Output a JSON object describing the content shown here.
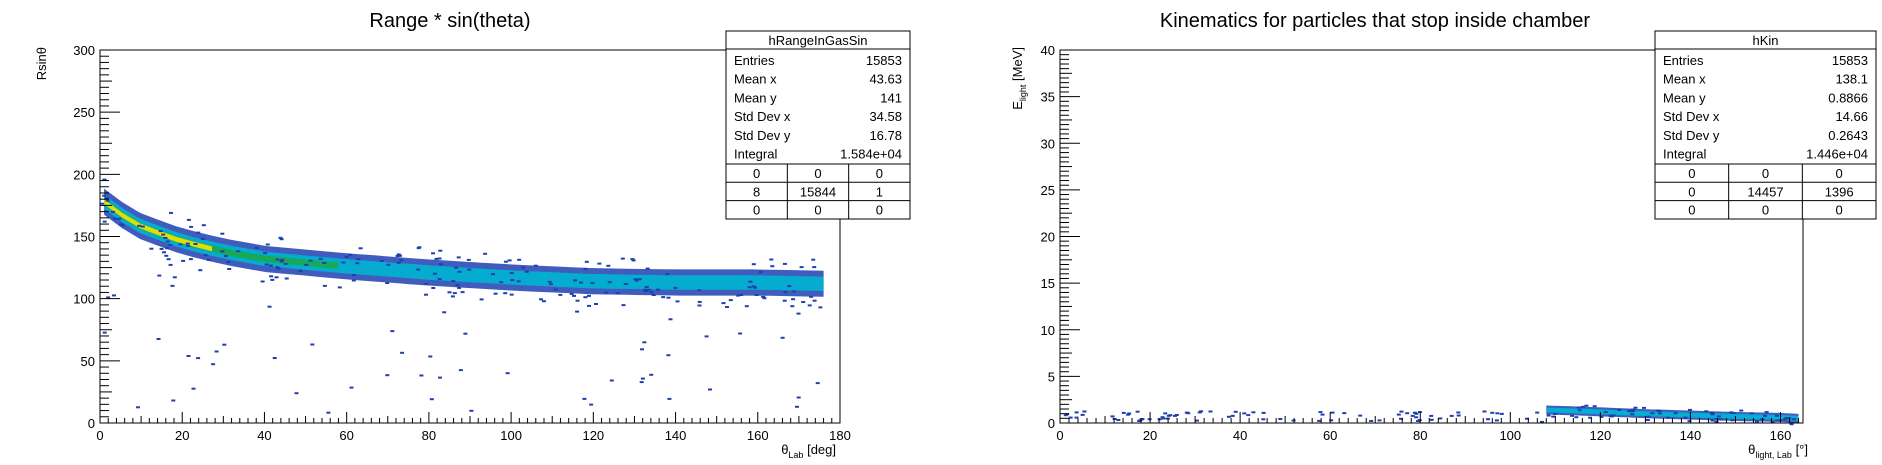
{
  "chart_data": [
    {
      "type": "heatmap",
      "title": "Range * sin(theta)",
      "xlabel_main": "θ",
      "xlabel_sub": "Lab",
      "xlabel_unit": "[deg]",
      "ylabel": "Rsinθ",
      "xlim": [
        0,
        180
      ],
      "ylim": [
        0,
        300
      ],
      "xticks": [
        0,
        20,
        40,
        60,
        80,
        100,
        120,
        140,
        160,
        180
      ],
      "yticks": [
        0,
        50,
        100,
        150,
        200,
        250,
        300
      ],
      "band": {
        "description": "dense curved band",
        "points": [
          [
            1,
            178
          ],
          [
            5,
            168
          ],
          [
            10,
            158
          ],
          [
            20,
            146
          ],
          [
            30,
            138
          ],
          [
            40,
            132
          ],
          [
            60,
            126
          ],
          [
            80,
            121
          ],
          [
            100,
            117
          ],
          [
            120,
            114
          ],
          [
            140,
            113
          ],
          [
            160,
            113
          ],
          [
            176,
            112
          ]
        ]
      },
      "stats": {
        "name": "hRangeInGasSin",
        "rows": [
          {
            "label": "Entries",
            "value": "15853"
          },
          {
            "label": "Mean x",
            "value": "43.63"
          },
          {
            "label": "Mean y",
            "value": "141"
          },
          {
            "label": "Std Dev x",
            "value": "34.58"
          },
          {
            "label": "Std Dev y",
            "value": "16.78"
          },
          {
            "label": "Integral",
            "value": "1.584e+04"
          }
        ],
        "grid": [
          [
            "0",
            "0",
            "0"
          ],
          [
            "8",
            "15844",
            "1"
          ],
          [
            "0",
            "0",
            "0"
          ]
        ]
      }
    },
    {
      "type": "heatmap",
      "title": "Kinematics for particles that stop inside chamber",
      "xlabel_main": "θ",
      "xlabel_sub": "light, Lab",
      "xlabel_unit": "[°]",
      "ylabel_main": "E",
      "ylabel_sub": "light",
      "ylabel_unit": "[MeV]",
      "xlim": [
        0,
        165
      ],
      "ylim": [
        0,
        40
      ],
      "xticks": [
        0,
        20,
        40,
        60,
        80,
        100,
        120,
        140,
        160
      ],
      "yticks": [
        0,
        5,
        10,
        15,
        20,
        25,
        30,
        35,
        40
      ],
      "band": {
        "description": "narrow low-energy band",
        "points": [
          [
            108,
            1.4
          ],
          [
            120,
            1.2
          ],
          [
            130,
            1.0
          ],
          [
            140,
            0.85
          ],
          [
            150,
            0.7
          ],
          [
            160,
            0.6
          ],
          [
            164,
            0.5
          ]
        ]
      },
      "stats": {
        "name": "hKin",
        "rows": [
          {
            "label": "Entries",
            "value": "15853"
          },
          {
            "label": "Mean x",
            "value": "138.1"
          },
          {
            "label": "Mean y",
            "value": "0.8866"
          },
          {
            "label": "Std Dev x",
            "value": "14.66"
          },
          {
            "label": "Std Dev y",
            "value": "0.2643"
          },
          {
            "label": "Integral",
            "value": "1.446e+04"
          }
        ],
        "grid": [
          [
            "0",
            "0",
            "0"
          ],
          [
            "0",
            "14457",
            "1396"
          ],
          [
            "0",
            "0",
            "0"
          ]
        ]
      }
    }
  ],
  "colors": {
    "band_core": "#f2e600",
    "band_mid": "#1aa84a",
    "band_outer": "#00b4d2",
    "scatter": "#1f3fb0"
  }
}
